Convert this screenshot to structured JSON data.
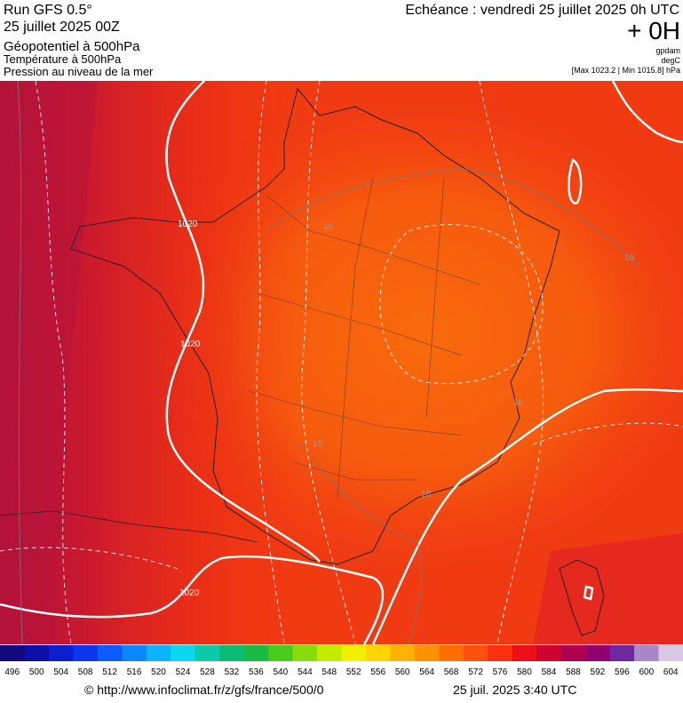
{
  "header": {
    "run": "Run GFS 0.5°",
    "date": "25 juillet 2025 00Z",
    "layers": [
      "Géopotentiel à 500hPa",
      "Température à 500hPa",
      "Pression au niveau de la mer"
    ],
    "echeance": "Echéance : vendredi 25 juillet 2025 0h UTC",
    "offset": "+ 0H",
    "units": [
      "gpdam",
      "degC"
    ],
    "range": "[Max 1023.2 | Min 1015.8] hPa"
  },
  "map": {
    "contour_labels": [
      "1020",
      "1020",
      "1020",
      "16",
      "16",
      "16",
      "16",
      "16"
    ]
  },
  "colorbar": {
    "values": [
      496,
      500,
      504,
      508,
      512,
      516,
      520,
      524,
      528,
      532,
      536,
      540,
      544,
      548,
      552,
      556,
      560,
      564,
      568,
      572,
      576,
      580,
      584,
      588,
      592,
      596,
      600,
      604
    ],
    "colors": [
      "#14087e",
      "#0c10a8",
      "#0a20d0",
      "#0a36f0",
      "#0a5cff",
      "#0a88ff",
      "#0ab4ff",
      "#0ad8ee",
      "#0acca8",
      "#0abc74",
      "#18bc40",
      "#48cc1c",
      "#88dc0c",
      "#c4ec00",
      "#f0f000",
      "#ffd400",
      "#ffb000",
      "#ff9000",
      "#ff7000",
      "#ff5010",
      "#ff3010",
      "#ee1018",
      "#d00030",
      "#b00050",
      "#900070",
      "#7028a0",
      "#a888c8",
      "#d8c8e4"
    ]
  },
  "footer": {
    "url": "© http://www.infoclimat.fr/z/gfs/france/500/0",
    "time": "25 juil. 2025  3:40 UTC"
  }
}
